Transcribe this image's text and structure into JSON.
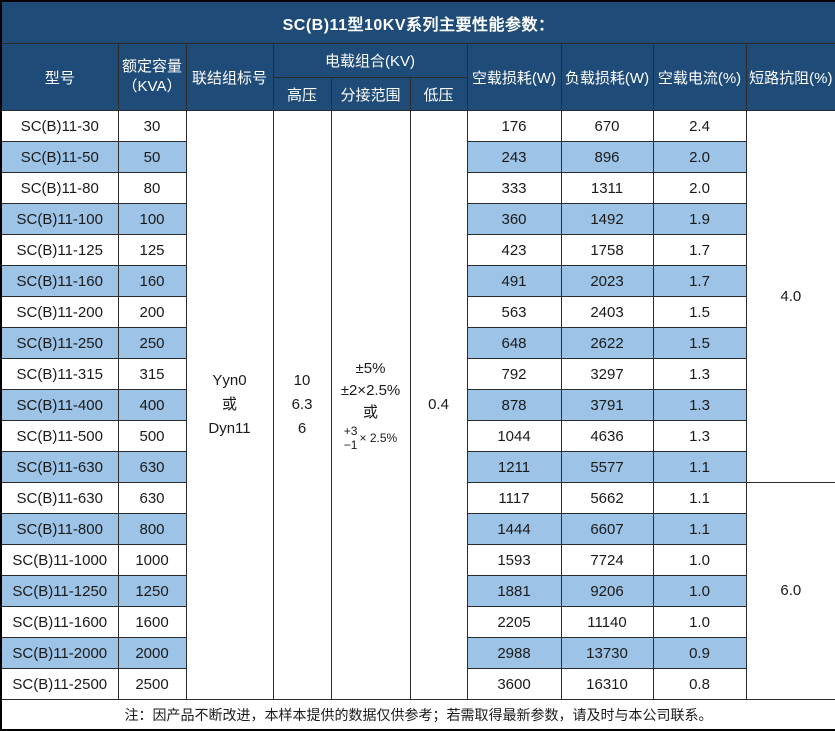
{
  "title": "SC(B)11型10KV系列主要性能参数：",
  "colors": {
    "header_bg": "#1F4B78",
    "stripe_bg": "#9DC3E6",
    "header_text": "#FFFFFF",
    "body_text": "#1A1A1A",
    "grid_line": "#2B2B2B"
  },
  "header": {
    "model": "型号",
    "capacity_line1": "额定容量",
    "capacity_line2": "（KVA）",
    "vector_group": "联结组标号",
    "voltage_combo": "电载组合(KV)",
    "hv": "高压",
    "tap_range": "分接范围",
    "lv": "低压",
    "no_load_loss": "空载损耗(W)",
    "load_loss": "负载损耗(W)",
    "no_load_current": "空载电流(%)",
    "impedance": "短路抗阻(%)"
  },
  "merged": {
    "vector_group_lines": [
      "Yyn0",
      "或",
      "Dyn11"
    ],
    "hv_lines": [
      "10",
      "6.3",
      "6"
    ],
    "tap_lines": [
      "±5%",
      "±2×2.5%",
      "或"
    ],
    "tap_stacked": {
      "top": "+3",
      "bottom": "−1",
      "suffix": "× 2.5%"
    },
    "lv": "0.4",
    "impedance_group1": "4.0",
    "impedance_group2": "6.0",
    "impedance_group1_rows": 12,
    "impedance_group2_rows": 7
  },
  "rows": [
    {
      "model": "SC(B)11-30",
      "kva": "30",
      "no_load": "176",
      "load": "670",
      "current": "2.4"
    },
    {
      "model": "SC(B)11-50",
      "kva": "50",
      "no_load": "243",
      "load": "896",
      "current": "2.0"
    },
    {
      "model": "SC(B)11-80",
      "kva": "80",
      "no_load": "333",
      "load": "1311",
      "current": "2.0"
    },
    {
      "model": "SC(B)11-100",
      "kva": "100",
      "no_load": "360",
      "load": "1492",
      "current": "1.9"
    },
    {
      "model": "SC(B)11-125",
      "kva": "125",
      "no_load": "423",
      "load": "1758",
      "current": "1.7"
    },
    {
      "model": "SC(B)11-160",
      "kva": "160",
      "no_load": "491",
      "load": "2023",
      "current": "1.7"
    },
    {
      "model": "SC(B)11-200",
      "kva": "200",
      "no_load": "563",
      "load": "2403",
      "current": "1.5"
    },
    {
      "model": "SC(B)11-250",
      "kva": "250",
      "no_load": "648",
      "load": "2622",
      "current": "1.5"
    },
    {
      "model": "SC(B)11-315",
      "kva": "315",
      "no_load": "792",
      "load": "3297",
      "current": "1.3"
    },
    {
      "model": "SC(B)11-400",
      "kva": "400",
      "no_load": "878",
      "load": "3791",
      "current": "1.3"
    },
    {
      "model": "SC(B)11-500",
      "kva": "500",
      "no_load": "1044",
      "load": "4636",
      "current": "1.3"
    },
    {
      "model": "SC(B)11-630",
      "kva": "630",
      "no_load": "1211",
      "load": "5577",
      "current": "1.1"
    },
    {
      "model": "SC(B)11-630",
      "kva": "630",
      "no_load": "1117",
      "load": "5662",
      "current": "1.1"
    },
    {
      "model": "SC(B)11-800",
      "kva": "800",
      "no_load": "1444",
      "load": "6607",
      "current": "1.1"
    },
    {
      "model": "SC(B)11-1000",
      "kva": "1000",
      "no_load": "1593",
      "load": "7724",
      "current": "1.0"
    },
    {
      "model": "SC(B)11-1250",
      "kva": "1250",
      "no_load": "1881",
      "load": "9206",
      "current": "1.0"
    },
    {
      "model": "SC(B)11-1600",
      "kva": "1600",
      "no_load": "2205",
      "load": "11140",
      "current": "1.0"
    },
    {
      "model": "SC(B)11-2000",
      "kva": "2000",
      "no_load": "2988",
      "load": "13730",
      "current": "0.9"
    },
    {
      "model": "SC(B)11-2500",
      "kva": "2500",
      "no_load": "3600",
      "load": "16310",
      "current": "0.8"
    }
  ],
  "note": "注：因产品不断改进，本样本提供的数据仅供参考；若需取得最新参数，请及时与本公司联系。"
}
